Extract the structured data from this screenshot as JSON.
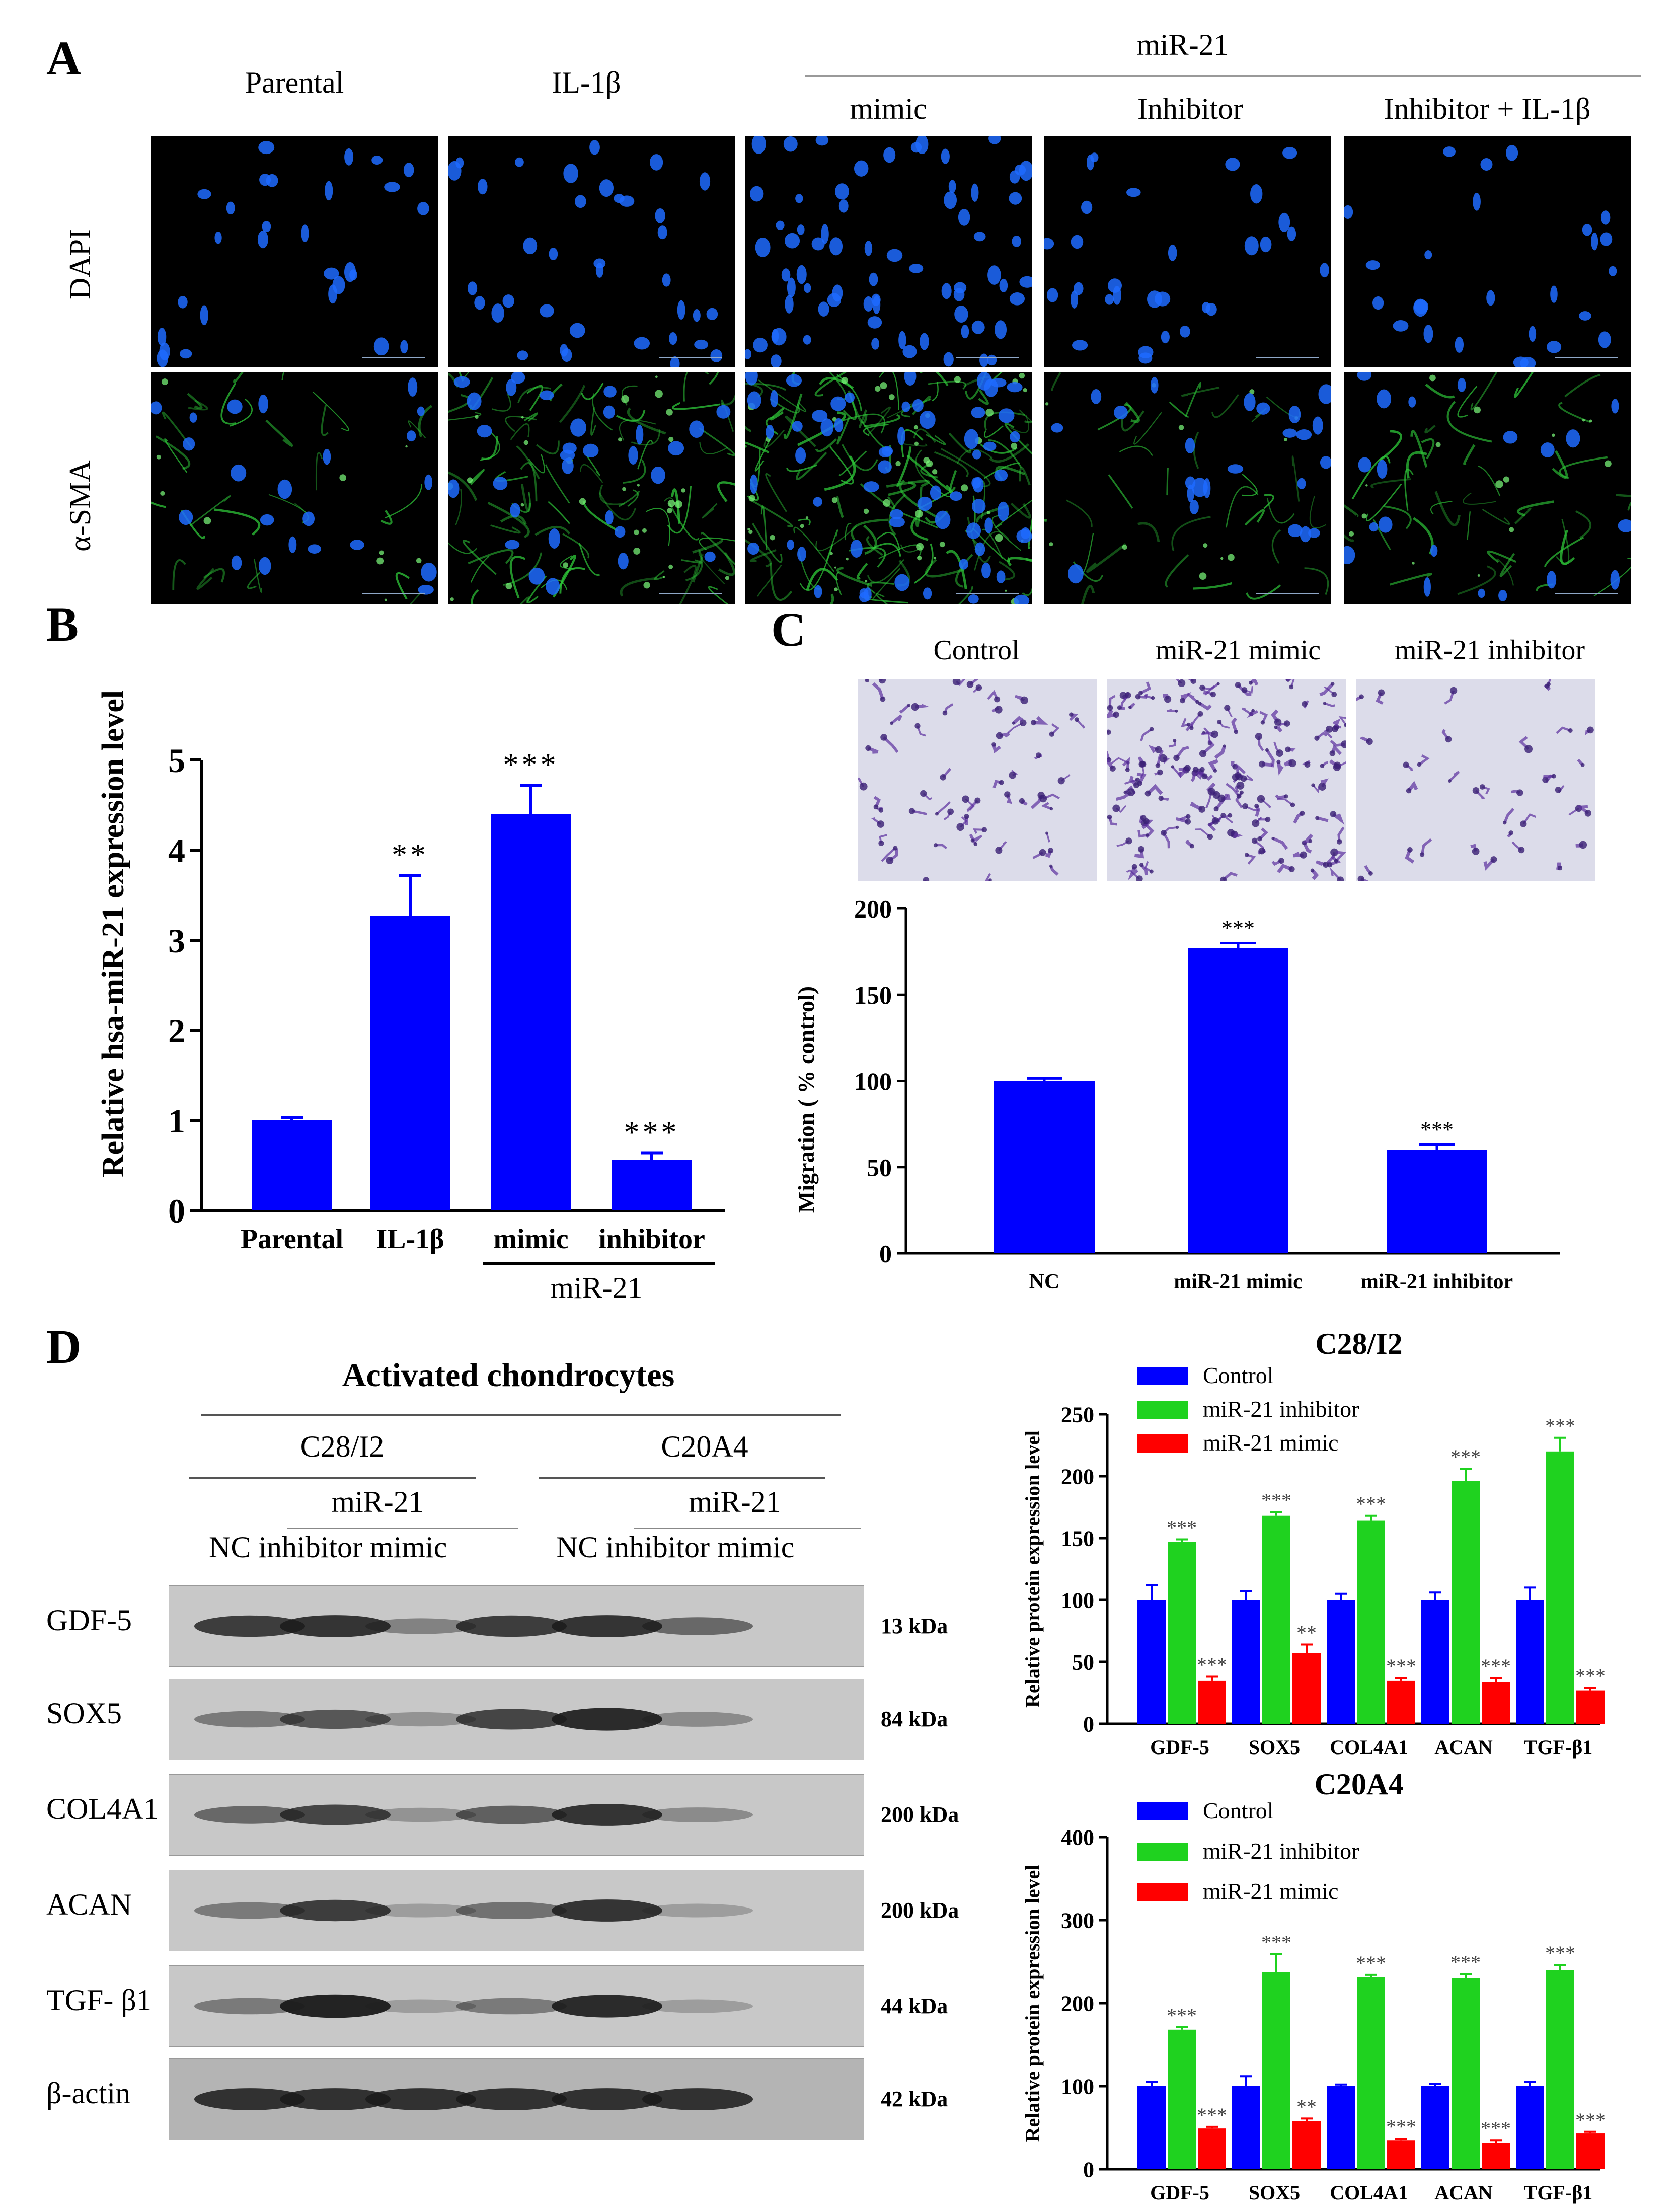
{
  "panels": {
    "A": "A",
    "B": "B",
    "C": "C",
    "D": "D"
  },
  "panelA": {
    "columns": [
      "Parental",
      "IL-1β",
      "mimic",
      "Inhibitor",
      "Inhibitor + IL-1β"
    ],
    "group_label": "miR-21",
    "rows": [
      "DAPI",
      "α-SMA"
    ],
    "colors": {
      "dapi": "#1e6bff",
      "green": "#2fcc3a",
      "background": "#000000"
    }
  },
  "panelC": {
    "images": [
      "Control",
      "miR-21 mimic",
      "miR-21 inhibitor"
    ]
  },
  "panelD": {
    "title": "Activated chondrocytes",
    "cell_lines": [
      "C28/I2",
      "C20A4"
    ],
    "sub_group": "miR-21",
    "lane_labels": "NC inhibitor mimic",
    "proteins": [
      "GDF-5",
      "SOX5",
      "COL4A1",
      "ACAN",
      "TGF- β1",
      "β-actin"
    ],
    "sizes": [
      "13 kDa",
      "84 kDa",
      "200 kDa",
      "200 kDa",
      "44 kDa",
      "42 kDa"
    ]
  },
  "chart_data": [
    {
      "id": "B",
      "type": "bar",
      "categories": [
        "Parental",
        "IL-1β",
        "mimic",
        "inhibitor"
      ],
      "values": [
        1.0,
        3.27,
        4.4,
        0.56
      ],
      "errors": [
        0.03,
        0.45,
        0.32,
        0.08
      ],
      "significance": [
        "",
        "**",
        "***",
        "***"
      ],
      "ylabel": "Relative hsa-miR-21 expression level",
      "group_label": "miR-21",
      "yticks": [
        0,
        1,
        2,
        3,
        4,
        5
      ],
      "ylim": [
        0,
        5
      ],
      "color": "#0000ff"
    },
    {
      "id": "C",
      "type": "bar",
      "categories": [
        "NC",
        "miR-21 mimic",
        "miR-21 inhibitor"
      ],
      "values": [
        100,
        177,
        60
      ],
      "errors": [
        1.5,
        3,
        3
      ],
      "significance": [
        "",
        "***",
        "***"
      ],
      "ylabel": "Migration ( % control)",
      "yticks": [
        0,
        50,
        100,
        150,
        200
      ],
      "ylim": [
        0,
        200
      ],
      "color": "#0000ff"
    },
    {
      "id": "D1",
      "type": "bar",
      "title": "C28/I2",
      "categories": [
        "GDF-5",
        "SOX5",
        "COL4A1",
        "ACAN",
        "TGF-β1"
      ],
      "series": [
        {
          "name": "Control",
          "color": "#0000ff",
          "values": [
            100,
            100,
            100,
            100,
            100
          ],
          "errors": [
            12,
            7,
            5,
            6,
            10
          ],
          "significance": [
            "",
            "",
            "",
            "",
            ""
          ]
        },
        {
          "name": "miR-21 inhibitor",
          "color": "#1fd21f",
          "values": [
            147,
            168,
            164,
            196,
            220
          ],
          "errors": [
            2,
            3,
            4,
            10,
            11
          ],
          "significance": [
            "***",
            "***",
            "***",
            "***",
            "***"
          ]
        },
        {
          "name": "miR-21 mimic",
          "color": "#ff0000",
          "values": [
            35,
            57,
            35,
            34,
            27
          ],
          "errors": [
            3,
            7,
            2,
            3,
            2
          ],
          "significance": [
            "***",
            "**",
            "***",
            "***",
            "***"
          ]
        }
      ],
      "ylabel": "Relative protein expression level",
      "yticks": [
        0,
        50,
        100,
        150,
        200,
        250
      ],
      "ylim": [
        0,
        250
      ]
    },
    {
      "id": "D2",
      "type": "bar",
      "title": "C20A4",
      "categories": [
        "GDF-5",
        "SOX5",
        "COL4A1",
        "ACAN",
        "TGF-β1"
      ],
      "series": [
        {
          "name": "Control",
          "color": "#0000ff",
          "values": [
            100,
            100,
            100,
            100,
            100
          ],
          "errors": [
            5,
            12,
            2,
            3,
            5
          ],
          "significance": [
            "",
            "",
            "",
            "",
            ""
          ]
        },
        {
          "name": "miR-21 inhibitor",
          "color": "#1fd21f",
          "values": [
            168,
            237,
            231,
            230,
            240
          ],
          "errors": [
            3,
            22,
            3,
            5,
            6
          ],
          "significance": [
            "***",
            "***",
            "***",
            "***",
            "***"
          ]
        },
        {
          "name": "miR-21 mimic",
          "color": "#ff0000",
          "values": [
            49,
            58,
            35,
            32,
            43
          ],
          "errors": [
            2,
            3,
            2,
            3,
            2
          ],
          "significance": [
            "***",
            "**",
            "***",
            "***",
            "***"
          ]
        }
      ],
      "ylabel": "Relative protein expression level",
      "yticks": [
        0,
        100,
        200,
        300,
        400
      ],
      "ylim": [
        0,
        400
      ]
    }
  ]
}
